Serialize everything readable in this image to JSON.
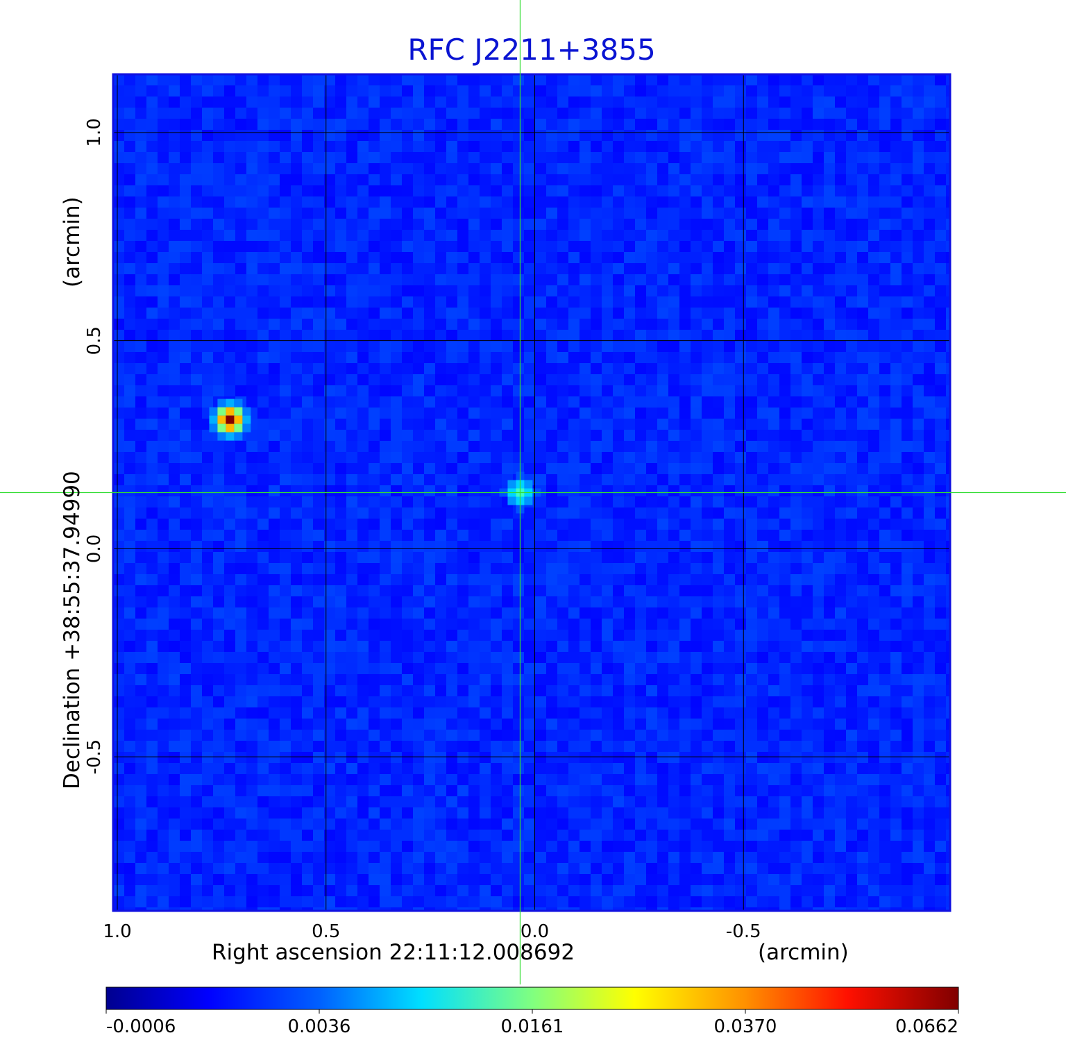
{
  "chart_data": {
    "type": "heatmap",
    "title": "RFC J2211+3855",
    "xlabel": "Right ascension  22:11:12.008692",
    "xunit": "(arcmin)",
    "ylabel": "Declination  +38:55:37.94990",
    "yunit": "(arcmin)",
    "x_ticks": [
      {
        "value": 1.0,
        "label": "1.0"
      },
      {
        "value": 0.5,
        "label": "0.5"
      },
      {
        "value": 0.0,
        "label": "0.0"
      },
      {
        "value": -0.5,
        "label": "-0.5"
      }
    ],
    "y_ticks": [
      {
        "value": 1.0,
        "label": "1.0"
      },
      {
        "value": 0.5,
        "label": "0.5"
      },
      {
        "value": 0.0,
        "label": "0.0"
      },
      {
        "value": -0.5,
        "label": "-0.5"
      }
    ],
    "xlim": [
      1.01,
      -0.995
    ],
    "ylim": [
      -0.87,
      1.14
    ],
    "grid": true,
    "crosshair": {
      "x": 0.035,
      "y": 0.135
    },
    "sources": [
      {
        "x": 0.73,
        "y": 0.31,
        "peak": 0.0662
      },
      {
        "x": 0.035,
        "y": 0.135,
        "peak": 0.0215
      }
    ],
    "colorbar": {
      "labels": [
        "-0.0006",
        "0.0036",
        "0.0161",
        "0.0370",
        "0.0662"
      ],
      "colormap": "jet"
    }
  },
  "colors": {
    "title": "#0a14d2",
    "frame": "#1010e0",
    "crosshair": "#33dd33",
    "grid": "#000000"
  }
}
